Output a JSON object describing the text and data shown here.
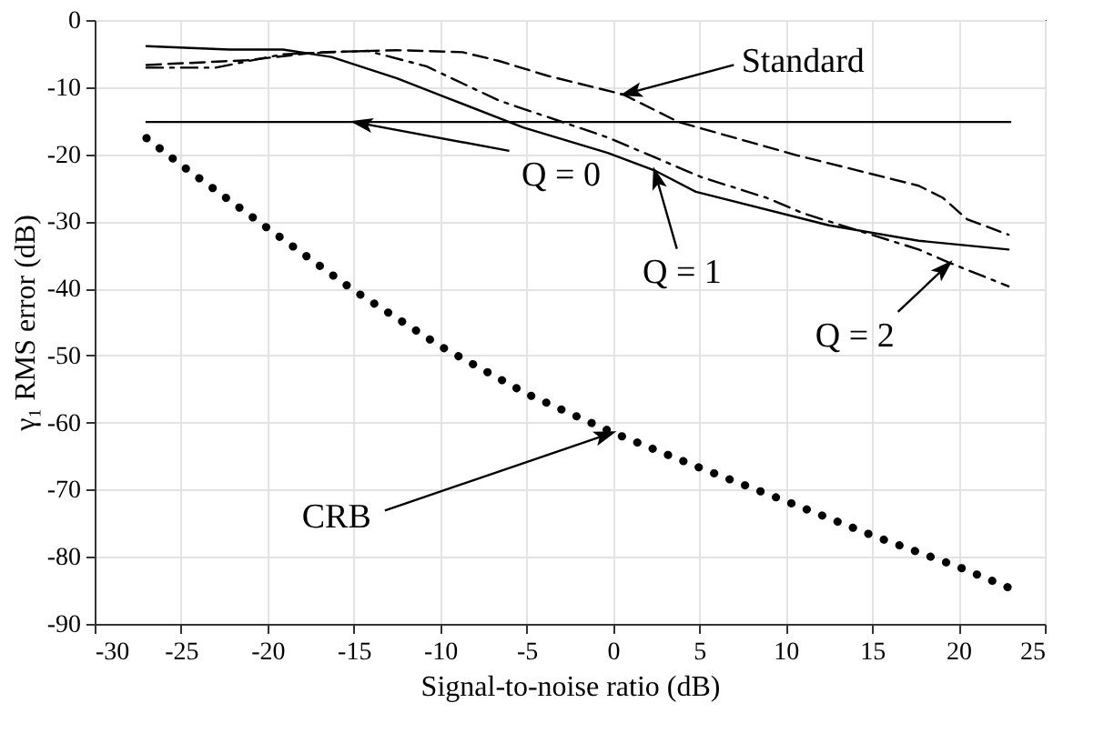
{
  "chart_data": {
    "type": "line",
    "xlabel": "Signal-to-noise ratio (dB)",
    "ylabel": "γ₁ RMS error (dB)",
    "xlim": [
      -30,
      25
    ],
    "xticks": [
      -30,
      -25,
      -20,
      -15,
      -10,
      -5,
      0,
      5,
      10,
      15,
      20,
      25
    ],
    "ylim": [
      -90,
      0
    ],
    "yticks": [
      -90,
      -80,
      -70,
      -60,
      -50,
      -40,
      -30,
      -20,
      -10,
      0
    ],
    "grid": true,
    "marker": "none",
    "series": [
      {
        "color": "#000000",
        "line_style": "dashed",
        "x": [
          -27,
          -21.2,
          -17,
          -12.5,
          -8.7,
          -6.6,
          -3.8,
          0.6,
          3.8,
          10.7,
          17.7,
          19.1,
          20.5,
          22.9
        ],
        "values": [
          -6.7,
          -6.0,
          -4.8,
          -4.5,
          -4.8,
          -6.1,
          -8.3,
          -11.1,
          -15.2,
          -20.2,
          -24.7,
          -26.5,
          -29.7,
          -32
        ]
      },
      {
        "color": "#000000",
        "line_style": "solid",
        "x": [
          -27,
          23
        ],
        "values": [
          -15.2,
          -15.2
        ]
      },
      {
        "color": "#000000",
        "line_style": "solid",
        "x": [
          -27,
          -22.2,
          -19.1,
          -16.3,
          -12.5,
          -9.4,
          -5.2,
          -0.3,
          2.4,
          4.8,
          12.5,
          17.7,
          22.9
        ],
        "values": [
          -3.9,
          -4.4,
          -4.4,
          -5.5,
          -8.7,
          -11.8,
          -16,
          -19.8,
          -22.4,
          -25.6,
          -30.6,
          -32.9,
          -34.2
        ]
      },
      {
        "color": "#000000",
        "line_style": "dashdot",
        "x": [
          -27,
          -23,
          -19.1,
          -14.2,
          -10.8,
          -6.6,
          -0.3,
          5.1,
          8.9,
          11,
          17.7,
          19.5,
          22.9
        ],
        "values": [
          -7.1,
          -7.1,
          -5.1,
          -4.6,
          -6.9,
          -12,
          -17.5,
          -23.4,
          -26.5,
          -28.8,
          -34.2,
          -36.2,
          -39.7
        ]
      },
      {
        "color": "#000000",
        "line_style": "dotted",
        "x": [
          -27,
          -25,
          -20,
          -15,
          -10,
          -5,
          0,
          5,
          10,
          15,
          20,
          23
        ],
        "values": [
          -17.6,
          -21.6,
          -31,
          -40.3,
          -48.6,
          -55.7,
          -61.5,
          -66.7,
          -71.7,
          -76.8,
          -81.5,
          -84.7
        ]
      }
    ],
    "annotations": [
      {
        "text": "Standard",
        "x": 0.6,
        "y": -11.1
      },
      {
        "text": "Q = 0",
        "x": -15,
        "y": -15.2
      },
      {
        "text": "Q = 1",
        "x": 2.4,
        "y": -22.4
      },
      {
        "text": "Q = 2",
        "x": 19.5,
        "y": -36.2
      },
      {
        "text": "CRB",
        "x": 0,
        "y": -61.5
      }
    ]
  }
}
